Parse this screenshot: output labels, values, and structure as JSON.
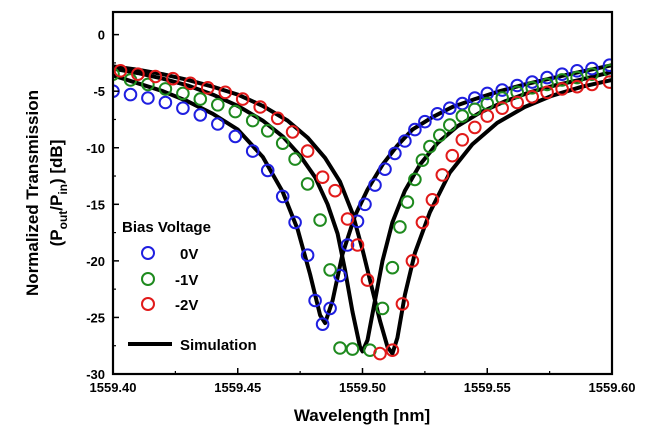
{
  "chart_data": {
    "type": "scatter",
    "xlabel": "Wavelength [nm]",
    "ylabel_line1": "Normalized Transmission",
    "ylabel_line2_prefix": "(P",
    "ylabel_line2_sub1": "out",
    "ylabel_line2_mid": "/P",
    "ylabel_line2_sub2": "in",
    "ylabel_line2_suffix": ") [dB]",
    "xlim": [
      1559.4,
      1559.6
    ],
    "ylim": [
      -30,
      2
    ],
    "xticks": [
      "1559.40",
      "1559.45",
      "1559.50",
      "1559.55",
      "1559.60"
    ],
    "xtick_values": [
      1559.4,
      1559.45,
      1559.5,
      1559.55,
      1559.6
    ],
    "yticks": [
      "0",
      "-5",
      "-10",
      "-15",
      "-20",
      "-25",
      "-30"
    ],
    "ytick_values": [
      0,
      -5,
      -10,
      -15,
      -20,
      -25,
      -30
    ],
    "legend_title": "Bias Voltage",
    "legend_position": "lower-left",
    "series": [
      {
        "name": "0V",
        "color": "#1f1fe0",
        "marker": "open-circle",
        "x": [
          1559.4,
          1559.407,
          1559.414,
          1559.421,
          1559.428,
          1559.435,
          1559.442,
          1559.449,
          1559.456,
          1559.462,
          1559.468,
          1559.473,
          1559.478,
          1559.481,
          1559.484,
          1559.487,
          1559.491,
          1559.494,
          1559.498,
          1559.501,
          1559.505,
          1559.509,
          1559.513,
          1559.517,
          1559.521,
          1559.525,
          1559.53,
          1559.535,
          1559.54,
          1559.545,
          1559.55,
          1559.556,
          1559.562,
          1559.568,
          1559.574,
          1559.58,
          1559.586,
          1559.592,
          1559.599
        ],
        "y": [
          -5.0,
          -5.3,
          -5.6,
          -6.0,
          -6.5,
          -7.1,
          -7.9,
          -9.0,
          -10.3,
          -12.0,
          -14.3,
          -16.6,
          -19.5,
          -23.5,
          -25.6,
          -24.2,
          -21.3,
          -18.6,
          -16.5,
          -15.0,
          -13.3,
          -11.9,
          -10.5,
          -9.4,
          -8.4,
          -7.7,
          -7.0,
          -6.5,
          -6.1,
          -5.6,
          -5.2,
          -4.9,
          -4.5,
          -4.2,
          -3.8,
          -3.5,
          -3.2,
          -3.0,
          -2.7
        ]
      },
      {
        "name": "-1V",
        "color": "#1e8a1e",
        "marker": "open-circle",
        "x": [
          1559.4,
          1559.407,
          1559.414,
          1559.421,
          1559.428,
          1559.435,
          1559.442,
          1559.449,
          1559.456,
          1559.462,
          1559.468,
          1559.473,
          1559.478,
          1559.483,
          1559.487,
          1559.491,
          1559.496,
          1559.503,
          1559.508,
          1559.512,
          1559.515,
          1559.518,
          1559.521,
          1559.524,
          1559.527,
          1559.531,
          1559.535,
          1559.54,
          1559.545,
          1559.55,
          1559.556,
          1559.562,
          1559.568,
          1559.574,
          1559.58,
          1559.586,
          1559.592,
          1559.599
        ],
        "y": [
          -3.5,
          -4.0,
          -4.4,
          -4.8,
          -5.2,
          -5.7,
          -6.2,
          -6.8,
          -7.6,
          -8.5,
          -9.6,
          -11.0,
          -13.2,
          -16.4,
          -20.8,
          -27.7,
          -27.8,
          -27.9,
          -24.2,
          -20.6,
          -17.0,
          -14.8,
          -12.8,
          -11.1,
          -9.9,
          -8.9,
          -8.0,
          -7.2,
          -6.6,
          -6.1,
          -5.6,
          -5.1,
          -4.7,
          -4.4,
          -4.0,
          -3.8,
          -3.5,
          -3.2
        ]
      },
      {
        "name": "-2V",
        "color": "#e11a1a",
        "marker": "open-circle",
        "x": [
          1559.403,
          1559.41,
          1559.417,
          1559.424,
          1559.431,
          1559.438,
          1559.445,
          1559.452,
          1559.459,
          1559.466,
          1559.472,
          1559.478,
          1559.484,
          1559.489,
          1559.494,
          1559.498,
          1559.502,
          1559.507,
          1559.512,
          1559.516,
          1559.52,
          1559.524,
          1559.528,
          1559.532,
          1559.536,
          1559.54,
          1559.545,
          1559.55,
          1559.556,
          1559.562,
          1559.568,
          1559.574,
          1559.58,
          1559.586,
          1559.592,
          1559.599
        ],
        "y": [
          -3.2,
          -3.5,
          -3.7,
          -3.9,
          -4.3,
          -4.7,
          -5.1,
          -5.7,
          -6.4,
          -7.4,
          -8.6,
          -10.3,
          -12.6,
          -13.8,
          -16.3,
          -18.6,
          -21.7,
          -28.2,
          -27.9,
          -23.8,
          -20.0,
          -16.6,
          -14.6,
          -12.4,
          -10.7,
          -9.3,
          -8.2,
          -7.2,
          -6.5,
          -6.0,
          -5.5,
          -5.1,
          -4.8,
          -4.6,
          -4.4,
          -4.2
        ]
      },
      {
        "name": "Simulation",
        "color": "#000000",
        "marker": "line",
        "curves": [
          {
            "x": [
              1559.4,
              1559.41,
              1559.42,
              1559.43,
              1559.44,
              1559.45,
              1559.46,
              1559.468,
              1559.474,
              1559.479,
              1559.483,
              1559.485,
              1559.488,
              1559.492,
              1559.497,
              1559.502,
              1559.508,
              1559.514,
              1559.52,
              1559.528,
              1559.536,
              1559.545,
              1559.555,
              1559.565,
              1559.575,
              1559.585,
              1559.6
            ],
            "y": [
              -3.6,
              -4.3,
              -5.0,
              -5.9,
              -7.0,
              -8.4,
              -10.8,
              -13.9,
              -17.2,
              -21.2,
              -24.8,
              -25.5,
              -23.5,
              -19.4,
              -16.0,
              -13.7,
              -11.5,
              -9.8,
              -8.4,
              -7.3,
              -6.4,
              -5.7,
              -5.0,
              -4.4,
              -3.9,
              -3.4,
              -2.7
            ]
          },
          {
            "x": [
              1559.4,
              1559.41,
              1559.42,
              1559.43,
              1559.44,
              1559.45,
              1559.46,
              1559.468,
              1559.475,
              1559.481,
              1559.486,
              1559.49,
              1559.493,
              1559.496,
              1559.499,
              1559.5,
              1559.502,
              1559.505,
              1559.508,
              1559.512,
              1559.517,
              1559.523,
              1559.53,
              1559.538,
              1559.547,
              1559.557,
              1559.567,
              1559.577,
              1559.587,
              1559.6
            ],
            "y": [
              -3.0,
              -3.4,
              -3.9,
              -4.5,
              -5.3,
              -6.3,
              -7.6,
              -9.0,
              -10.7,
              -12.6,
              -15.0,
              -17.6,
              -20.8,
              -24.5,
              -27.6,
              -28.0,
              -27.0,
              -23.5,
              -20.0,
              -16.6,
              -13.8,
              -11.5,
              -9.6,
              -8.1,
              -6.9,
              -5.9,
              -5.1,
              -4.5,
              -4.0,
              -3.3
            ]
          },
          {
            "x": [
              1559.4,
              1559.41,
              1559.42,
              1559.43,
              1559.44,
              1559.45,
              1559.46,
              1559.47,
              1559.478,
              1559.485,
              1559.491,
              1559.496,
              1559.5,
              1559.504,
              1559.507,
              1559.51,
              1559.512,
              1559.514,
              1559.517,
              1559.521,
              1559.527,
              1559.535,
              1559.544,
              1559.554,
              1559.565,
              1559.576,
              1559.588,
              1559.6
            ],
            "y": [
              -2.8,
              -3.1,
              -3.5,
              -4.0,
              -4.6,
              -5.3,
              -6.3,
              -7.6,
              -9.1,
              -10.9,
              -13.0,
              -15.8,
              -19.0,
              -22.6,
              -25.3,
              -27.6,
              -28.2,
              -26.8,
              -23.0,
              -19.3,
              -15.7,
              -12.2,
              -9.7,
              -7.8,
              -6.4,
              -5.4,
              -4.6,
              -4.0
            ]
          }
        ]
      }
    ]
  }
}
